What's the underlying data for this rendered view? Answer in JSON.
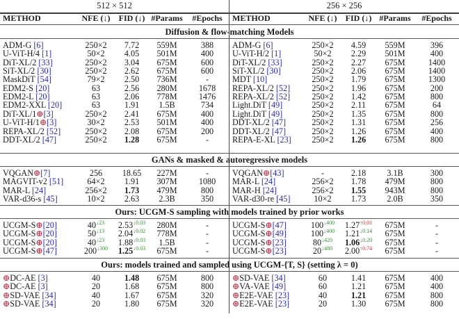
{
  "resolutions": {
    "left": "512 × 512",
    "right": "256 × 256"
  },
  "headers": {
    "method": "METHOD",
    "nfe": "NFE (↓)",
    "fid": "FID (↓)",
    "params": "#Params",
    "epochs": "#Epochs"
  },
  "sections": [
    {
      "title": "Diffusion & flow-matching Models",
      "left": [
        {
          "name": "ADM-G ",
          "ref": "[6]",
          "oplus": false,
          "nfe": "250×2",
          "fid": "7.72",
          "params": "559M",
          "epochs": "388"
        },
        {
          "name": "U-ViT-H/4 ",
          "ref": "[1]",
          "oplus": false,
          "nfe": "50×2",
          "fid": "4.05",
          "params": "501M",
          "epochs": "400"
        },
        {
          "name": "DiT-XL/2 ",
          "ref": "[33]",
          "oplus": false,
          "nfe": "250×2",
          "fid": "3.04",
          "params": "675M",
          "epochs": "600"
        },
        {
          "name": "SiT-XL/2 ",
          "ref": "[30]",
          "oplus": false,
          "nfe": "250×2",
          "fid": "2.62",
          "params": "675M",
          "epochs": "600"
        },
        {
          "name": "MaskDiT ",
          "ref": "[54]",
          "oplus": false,
          "nfe": "79×2",
          "fid": "2.50",
          "params": "736M",
          "epochs": "-"
        },
        {
          "name": "EDM2-S ",
          "ref": "[20]",
          "oplus": false,
          "nfe": "63",
          "fid": "2.56",
          "params": "280M",
          "epochs": "1678"
        },
        {
          "name": "EDM2-L ",
          "ref": "[20]",
          "oplus": false,
          "nfe": "63",
          "fid": "2.06",
          "params": "778M",
          "epochs": "1476"
        },
        {
          "name": "EDM2-XXL ",
          "ref": "[20]",
          "oplus": false,
          "nfe": "63",
          "fid": "1.91",
          "params": "1.5B",
          "epochs": "734"
        },
        {
          "name": "DiT-XL/1",
          "ref": "[3]",
          "oplus": true,
          "nfe": "250×2",
          "fid": "2.41",
          "params": "675M",
          "epochs": "400"
        },
        {
          "name": "U-ViT-H/1",
          "ref": "[3]",
          "oplus": true,
          "nfe": "30×2",
          "fid": "2.53",
          "params": "501M",
          "epochs": "400"
        },
        {
          "name": "REPA-XL/2 ",
          "ref": "[52]",
          "oplus": false,
          "nfe": "250×2",
          "fid": "2.08",
          "params": "675M",
          "epochs": "200"
        },
        {
          "name": "DDT-XL/2 ",
          "ref": "[47]",
          "oplus": false,
          "nfe": "250×2",
          "fid": "1.28",
          "fid_bold": true,
          "params": "675M",
          "epochs": "-"
        }
      ],
      "right": [
        {
          "name": "ADM-G ",
          "ref": "[6]",
          "oplus": false,
          "nfe": "250×2",
          "fid": "4.59",
          "params": "559M",
          "epochs": "396"
        },
        {
          "name": "U-ViT-H/2 ",
          "ref": "[1]",
          "oplus": false,
          "nfe": "50×2",
          "fid": "2.29",
          "params": "501M",
          "epochs": "400"
        },
        {
          "name": "DiT-XL/2 ",
          "ref": "[33]",
          "oplus": false,
          "nfe": "250×2",
          "fid": "2.27",
          "params": "675M",
          "epochs": "1400"
        },
        {
          "name": "SiT-XL/2 ",
          "ref": "[30]",
          "oplus": false,
          "nfe": "250×2",
          "fid": "2.06",
          "params": "675M",
          "epochs": "1400"
        },
        {
          "name": "MDT ",
          "ref": "[10]",
          "oplus": false,
          "nfe": "250×2",
          "fid": "1.79",
          "params": "675M",
          "epochs": "1300"
        },
        {
          "name": "REPA-XL/2 ",
          "ref": "[52]",
          "oplus": false,
          "nfe": "250×2",
          "fid": "1.96",
          "params": "675M",
          "epochs": "200"
        },
        {
          "name": "REPA-XL/2 ",
          "ref": "[52]",
          "oplus": false,
          "nfe": "250×2",
          "fid": "1.42",
          "params": "675M",
          "epochs": "800"
        },
        {
          "name": "Light.DiT ",
          "ref": "[49]",
          "oplus": false,
          "nfe": "250×2",
          "fid": "2.11",
          "params": "675M",
          "epochs": "64"
        },
        {
          "name": "Light.DiT ",
          "ref": "[49]",
          "oplus": false,
          "nfe": "250×2",
          "fid": "1.35",
          "params": "675M",
          "epochs": "800"
        },
        {
          "name": "DDT-XL/2 ",
          "ref": "[47]",
          "oplus": false,
          "nfe": "250×2",
          "fid": "1.31",
          "params": "675M",
          "epochs": "256"
        },
        {
          "name": "DDT-XL/2 ",
          "ref": "[47]",
          "oplus": false,
          "nfe": "250×2",
          "fid": "1.26",
          "params": "675M",
          "epochs": "400"
        },
        {
          "name": "REPA-E-XL ",
          "ref": "[23]",
          "oplus": false,
          "nfe": "250×2",
          "fid": "1.26",
          "fid_bold": true,
          "params": "675M",
          "epochs": "800"
        }
      ]
    },
    {
      "title": "GANs & masked & autoregressive models",
      "left": [
        {
          "name": "VQGAN",
          "ref": "[7]",
          "oplus": true,
          "nfe": "256",
          "fid": "18.65",
          "params": "227M",
          "epochs": "-"
        },
        {
          "name": "MAGVIT-v2 ",
          "ref": "[51]",
          "oplus": false,
          "nfe": "64×2",
          "fid": "1.91",
          "params": "307M",
          "epochs": "1080"
        },
        {
          "name": "MAR-L ",
          "ref": "[24]",
          "oplus": false,
          "nfe": "256×2",
          "fid": "1.73",
          "fid_bold": true,
          "params": "479M",
          "epochs": "800"
        },
        {
          "name": "VAR-d36-s ",
          "ref": "[45]",
          "oplus": false,
          "nfe": "10×2",
          "fid": "2.63",
          "params": "2.3B",
          "epochs": "350"
        }
      ],
      "right": [
        {
          "name": "VQGAN",
          "ref": "[43]",
          "oplus": true,
          "nfe": "-",
          "fid": "2.18",
          "params": "3.1B",
          "epochs": "300"
        },
        {
          "name": "MAR-L ",
          "ref": "[24]",
          "oplus": false,
          "nfe": "256×2",
          "fid": "1.78",
          "params": "479M",
          "epochs": "800"
        },
        {
          "name": "MAR-H ",
          "ref": "[24]",
          "oplus": false,
          "nfe": "256×2",
          "fid": "1.55",
          "fid_bold": true,
          "params": "943M",
          "epochs": "800"
        },
        {
          "name": "VAR-d30-re ",
          "ref": "[45]",
          "oplus": false,
          "nfe": "10×2",
          "fid": "1.73",
          "params": "2.0B",
          "epochs": "350"
        }
      ]
    },
    {
      "title": "Ours: UCGM-S sampling with models trained by prior works",
      "left": [
        {
          "name": "UCGM-S",
          "ref": "[20]",
          "oplus": true,
          "nfe": "40",
          "nfe_delta": "↓23",
          "nfe_dir": "down",
          "fid": "2.53",
          "fid_delta": "↓0.03",
          "fid_dir": "down",
          "params": "280M",
          "epochs": "-"
        },
        {
          "name": "UCGM-S",
          "ref": "[20]",
          "oplus": true,
          "nfe": "50",
          "nfe_delta": "↓13",
          "nfe_dir": "down",
          "fid": "2.04",
          "fid_delta": "↓0.02",
          "fid_dir": "down",
          "params": "778M",
          "epochs": "-"
        },
        {
          "name": "UCGM-S",
          "ref": "[20]",
          "oplus": true,
          "nfe": "40",
          "nfe_delta": "↓23",
          "nfe_dir": "down",
          "fid": "1.88",
          "fid_delta": "↓0.03",
          "fid_dir": "down",
          "params": "1.5B",
          "epochs": "-"
        },
        {
          "name": "UCGM-S",
          "ref": "[47]",
          "oplus": true,
          "nfe": "200",
          "nfe_delta": "↓300",
          "nfe_dir": "down",
          "fid": "1.25",
          "fid_bold": true,
          "fid_delta": "↓0.03",
          "fid_dir": "down",
          "params": "675M",
          "epochs": "-"
        }
      ],
      "right": [
        {
          "name": "UCGM-S",
          "ref": "[47]",
          "oplus": true,
          "nfe": "100",
          "nfe_delta": "↓400",
          "nfe_dir": "down",
          "fid": "1.27",
          "fid_delta": "↑0.01",
          "fid_dir": "up",
          "params": "675M",
          "epochs": "-"
        },
        {
          "name": "UCGM-S",
          "ref": "[49]",
          "oplus": true,
          "nfe": "100",
          "nfe_delta": "↓400",
          "nfe_dir": "down",
          "fid": "1.21",
          "fid_delta": "↓0.14",
          "fid_dir": "down",
          "params": "675M",
          "epochs": "-"
        },
        {
          "name": "UCGM-S",
          "ref": "[23]",
          "oplus": true,
          "nfe": "80",
          "nfe_delta": "↓420",
          "nfe_dir": "down",
          "fid": "1.06",
          "fid_bold": true,
          "fid_delta": "↓0.20",
          "fid_dir": "down",
          "params": "675M",
          "epochs": "-"
        },
        {
          "name": "UCGM-S",
          "ref": "[23]",
          "oplus": true,
          "nfe": "20",
          "nfe_delta": "↓480",
          "nfe_dir": "down",
          "fid": "2.00",
          "fid_delta": "↑0.74",
          "fid_dir": "up",
          "params": "675M",
          "epochs": "-"
        }
      ]
    },
    {
      "title": "Ours: models trained and sampled using UCGM-{T, S} (setting λ = 0)",
      "left": [
        {
          "name": "DC-AE ",
          "ref": "[3]",
          "oplus_prefix": true,
          "nfe": "40",
          "fid": "1.48",
          "fid_bold": true,
          "params": "675M",
          "epochs": "800"
        },
        {
          "name": "DC-AE ",
          "ref": "[3]",
          "oplus_prefix": true,
          "nfe": "20",
          "fid": "1.68",
          "params": "675M",
          "epochs": "800"
        },
        {
          "name": "SD-VAE ",
          "ref": "[34]",
          "oplus_prefix": true,
          "nfe": "40",
          "fid": "1.67",
          "params": "675M",
          "epochs": "320"
        },
        {
          "name": "SD-VAE ",
          "ref": "[34]",
          "oplus_prefix": true,
          "nfe": "20",
          "fid": "1.80",
          "params": "675M",
          "epochs": "320"
        }
      ],
      "right": [
        {
          "name": "SD-VAE ",
          "ref": "[34]",
          "oplus_prefix": true,
          "nfe": "60",
          "fid": "1.41",
          "params": "675M",
          "epochs": "400"
        },
        {
          "name": "VA-VAE ",
          "ref": "[49]",
          "oplus_prefix": true,
          "nfe": "60",
          "fid": "1.21",
          "params": "675M",
          "epochs": "400"
        },
        {
          "name": "E2E-VAE ",
          "ref": "[23]",
          "oplus_prefix": true,
          "nfe": "40",
          "fid": "1.21",
          "fid_bold": true,
          "params": "675M",
          "epochs": "800"
        },
        {
          "name": "E2E-VAE ",
          "ref": "[23]",
          "oplus_prefix": true,
          "nfe": "20",
          "fid": "1.30",
          "params": "675M",
          "epochs": "800"
        }
      ]
    }
  ],
  "colors": {
    "ref": "#2b2bb0",
    "oplus": "#b4203a",
    "improve": "#3a8a3a",
    "worsen": "#d0303a"
  }
}
